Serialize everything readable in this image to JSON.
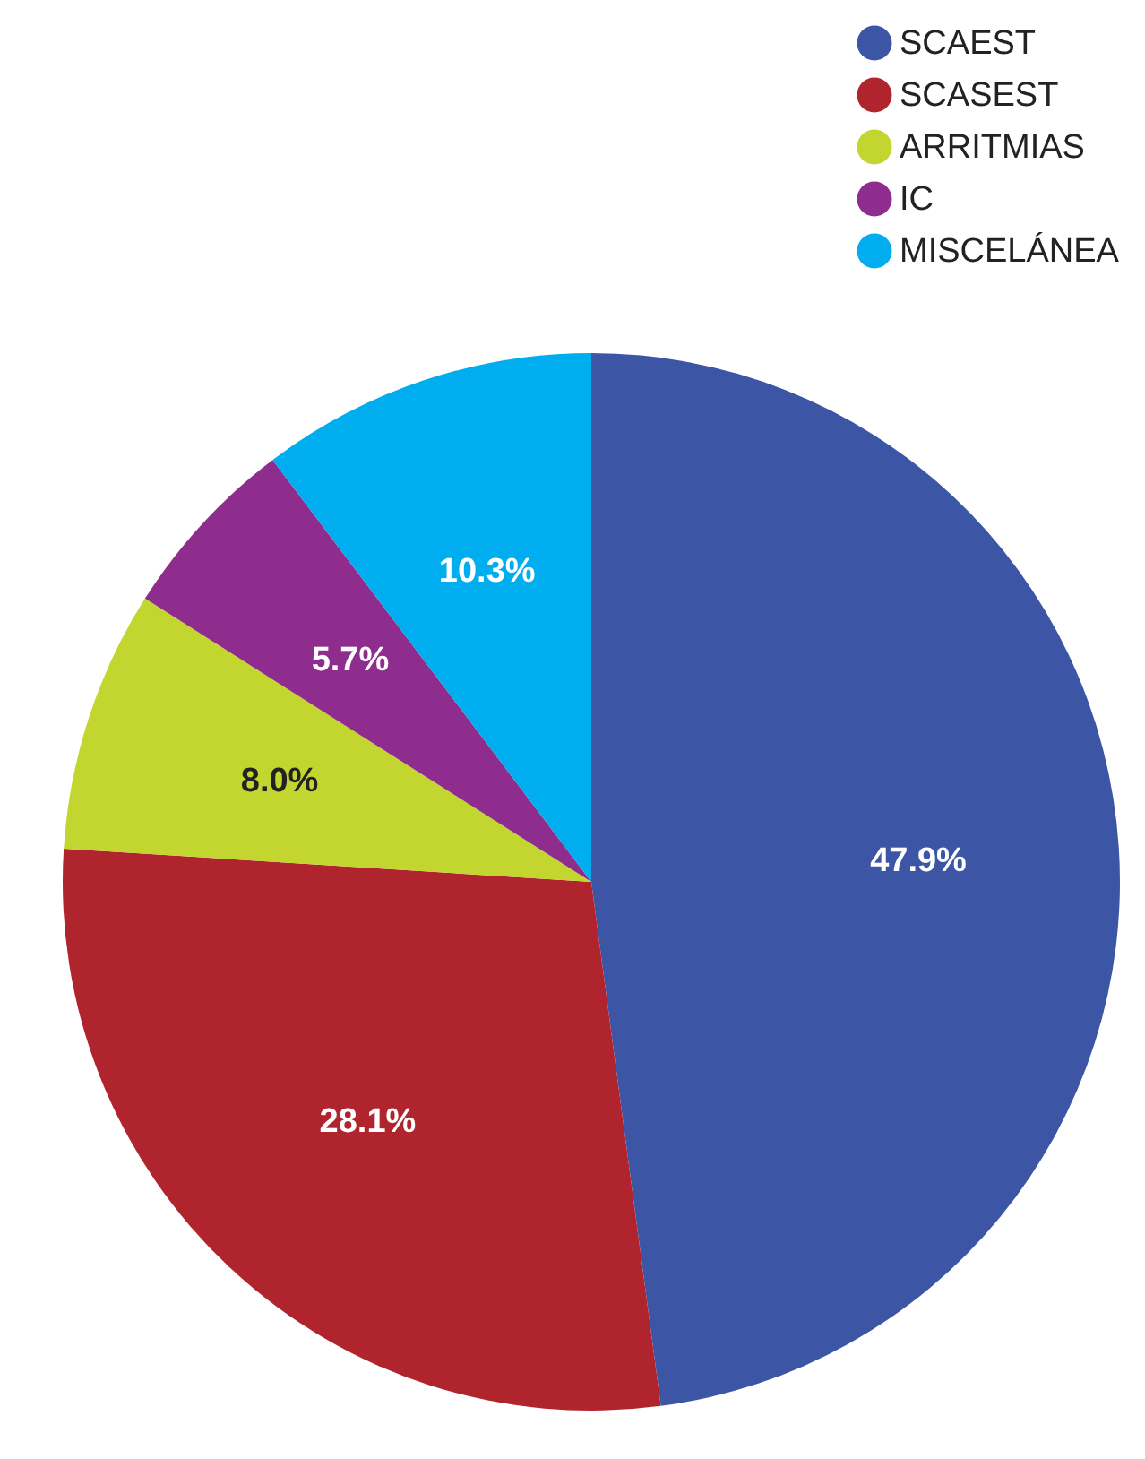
{
  "chart_data": {
    "type": "pie",
    "categories": [
      "SCAEST",
      "SCASEST",
      "ARRITMIAS",
      "IC",
      "MISCELÁNEA"
    ],
    "values": [
      47.9,
      28.1,
      8.0,
      5.7,
      10.3
    ],
    "value_labels": [
      "47.9%",
      "28.1%",
      "8.0%",
      "5.7%",
      "10.3%"
    ],
    "colors": [
      "#3c55a5",
      "#b0242e",
      "#c3d52f",
      "#8f2d8f",
      "#00aeef"
    ],
    "legend": "top right"
  }
}
